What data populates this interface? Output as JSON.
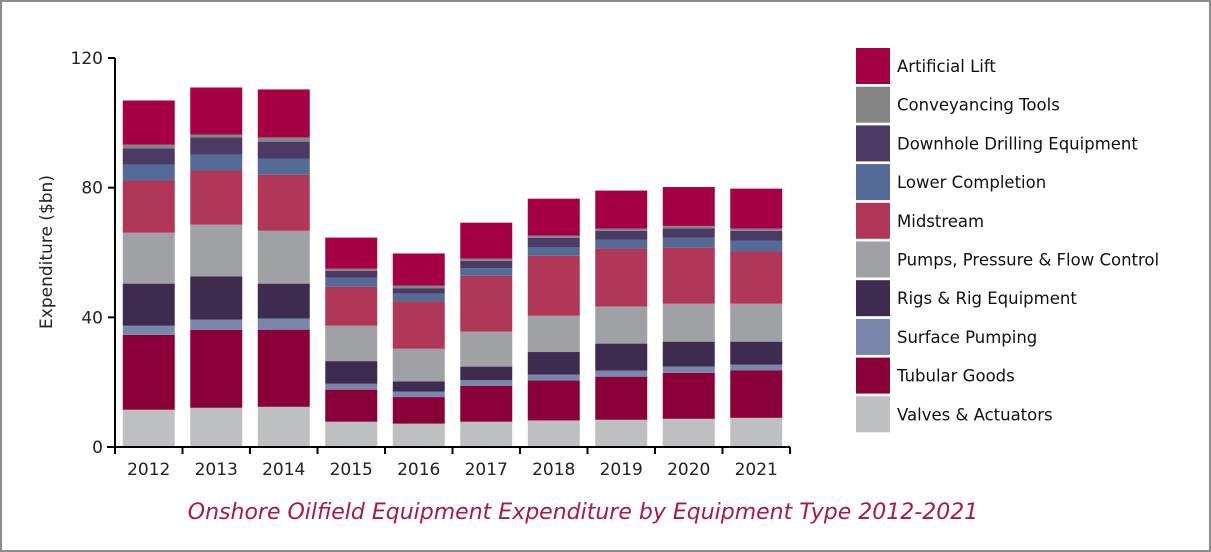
{
  "chart_data": {
    "type": "bar",
    "stacked": true,
    "title": "Onshore Oilfield Equipment Expenditure by Equipment Type 2012-2021",
    "xlabel": "",
    "ylabel": "Expenditure ($bn)",
    "ylim": [
      0,
      120
    ],
    "yticks": [
      0,
      40,
      80,
      120
    ],
    "grid": false,
    "legend_position": "right",
    "categories": [
      "2012",
      "2013",
      "2014",
      "2015",
      "2016",
      "2017",
      "2018",
      "2019",
      "2020",
      "2021"
    ],
    "series": [
      {
        "name": "Valves & Actuators",
        "color": "#bebfc1",
        "values": [
          11.5,
          12.1,
          12.4,
          7.8,
          7.2,
          7.8,
          8.2,
          8.4,
          8.7,
          9.0
        ]
      },
      {
        "name": "Tubular Goods",
        "color": "#8a0038",
        "values": [
          23.1,
          24.0,
          23.8,
          9.9,
          8.2,
          11.1,
          12.3,
          13.3,
          14.2,
          14.6
        ]
      },
      {
        "name": "Surface Pumping",
        "color": "#7a87ab",
        "values": [
          2.8,
          3.2,
          3.4,
          1.8,
          1.7,
          1.7,
          1.8,
          1.9,
          1.9,
          1.8
        ]
      },
      {
        "name": "Rigs & Rig Equipment",
        "color": "#3e2c50",
        "values": [
          13.0,
          13.3,
          10.8,
          7.0,
          3.1,
          4.2,
          7.0,
          8.3,
          7.7,
          7.1
        ]
      },
      {
        "name": "Pumps, Pressure & Flow Control",
        "color": "#a0a1a4",
        "values": [
          15.7,
          16.0,
          16.3,
          10.9,
          10.1,
          10.8,
          11.2,
          11.4,
          11.7,
          11.7
        ]
      },
      {
        "name": "Midstream",
        "color": "#b03758",
        "values": [
          16.1,
          16.7,
          17.3,
          12.0,
          14.6,
          17.2,
          18.5,
          17.9,
          17.3,
          16.1
        ]
      },
      {
        "name": "Lower Completion",
        "color": "#536b96",
        "values": [
          4.9,
          4.9,
          5.0,
          2.8,
          2.4,
          2.4,
          2.7,
          2.8,
          3.1,
          3.4
        ]
      },
      {
        "name": "Downhole Drilling Equipment",
        "color": "#4b3a63",
        "values": [
          5.0,
          5.3,
          5.2,
          2.1,
          1.7,
          2.2,
          2.8,
          2.7,
          2.8,
          3.0
        ]
      },
      {
        "name": "Conveyancing Tools",
        "color": "#858585",
        "values": [
          1.2,
          0.9,
          1.3,
          0.7,
          0.8,
          0.7,
          0.7,
          0.7,
          0.8,
          0.7
        ]
      },
      {
        "name": "Artificial Lift",
        "color": "#a50044",
        "values": [
          13.6,
          14.5,
          14.8,
          9.6,
          9.9,
          11.1,
          11.4,
          11.7,
          12.0,
          12.3
        ]
      }
    ]
  }
}
